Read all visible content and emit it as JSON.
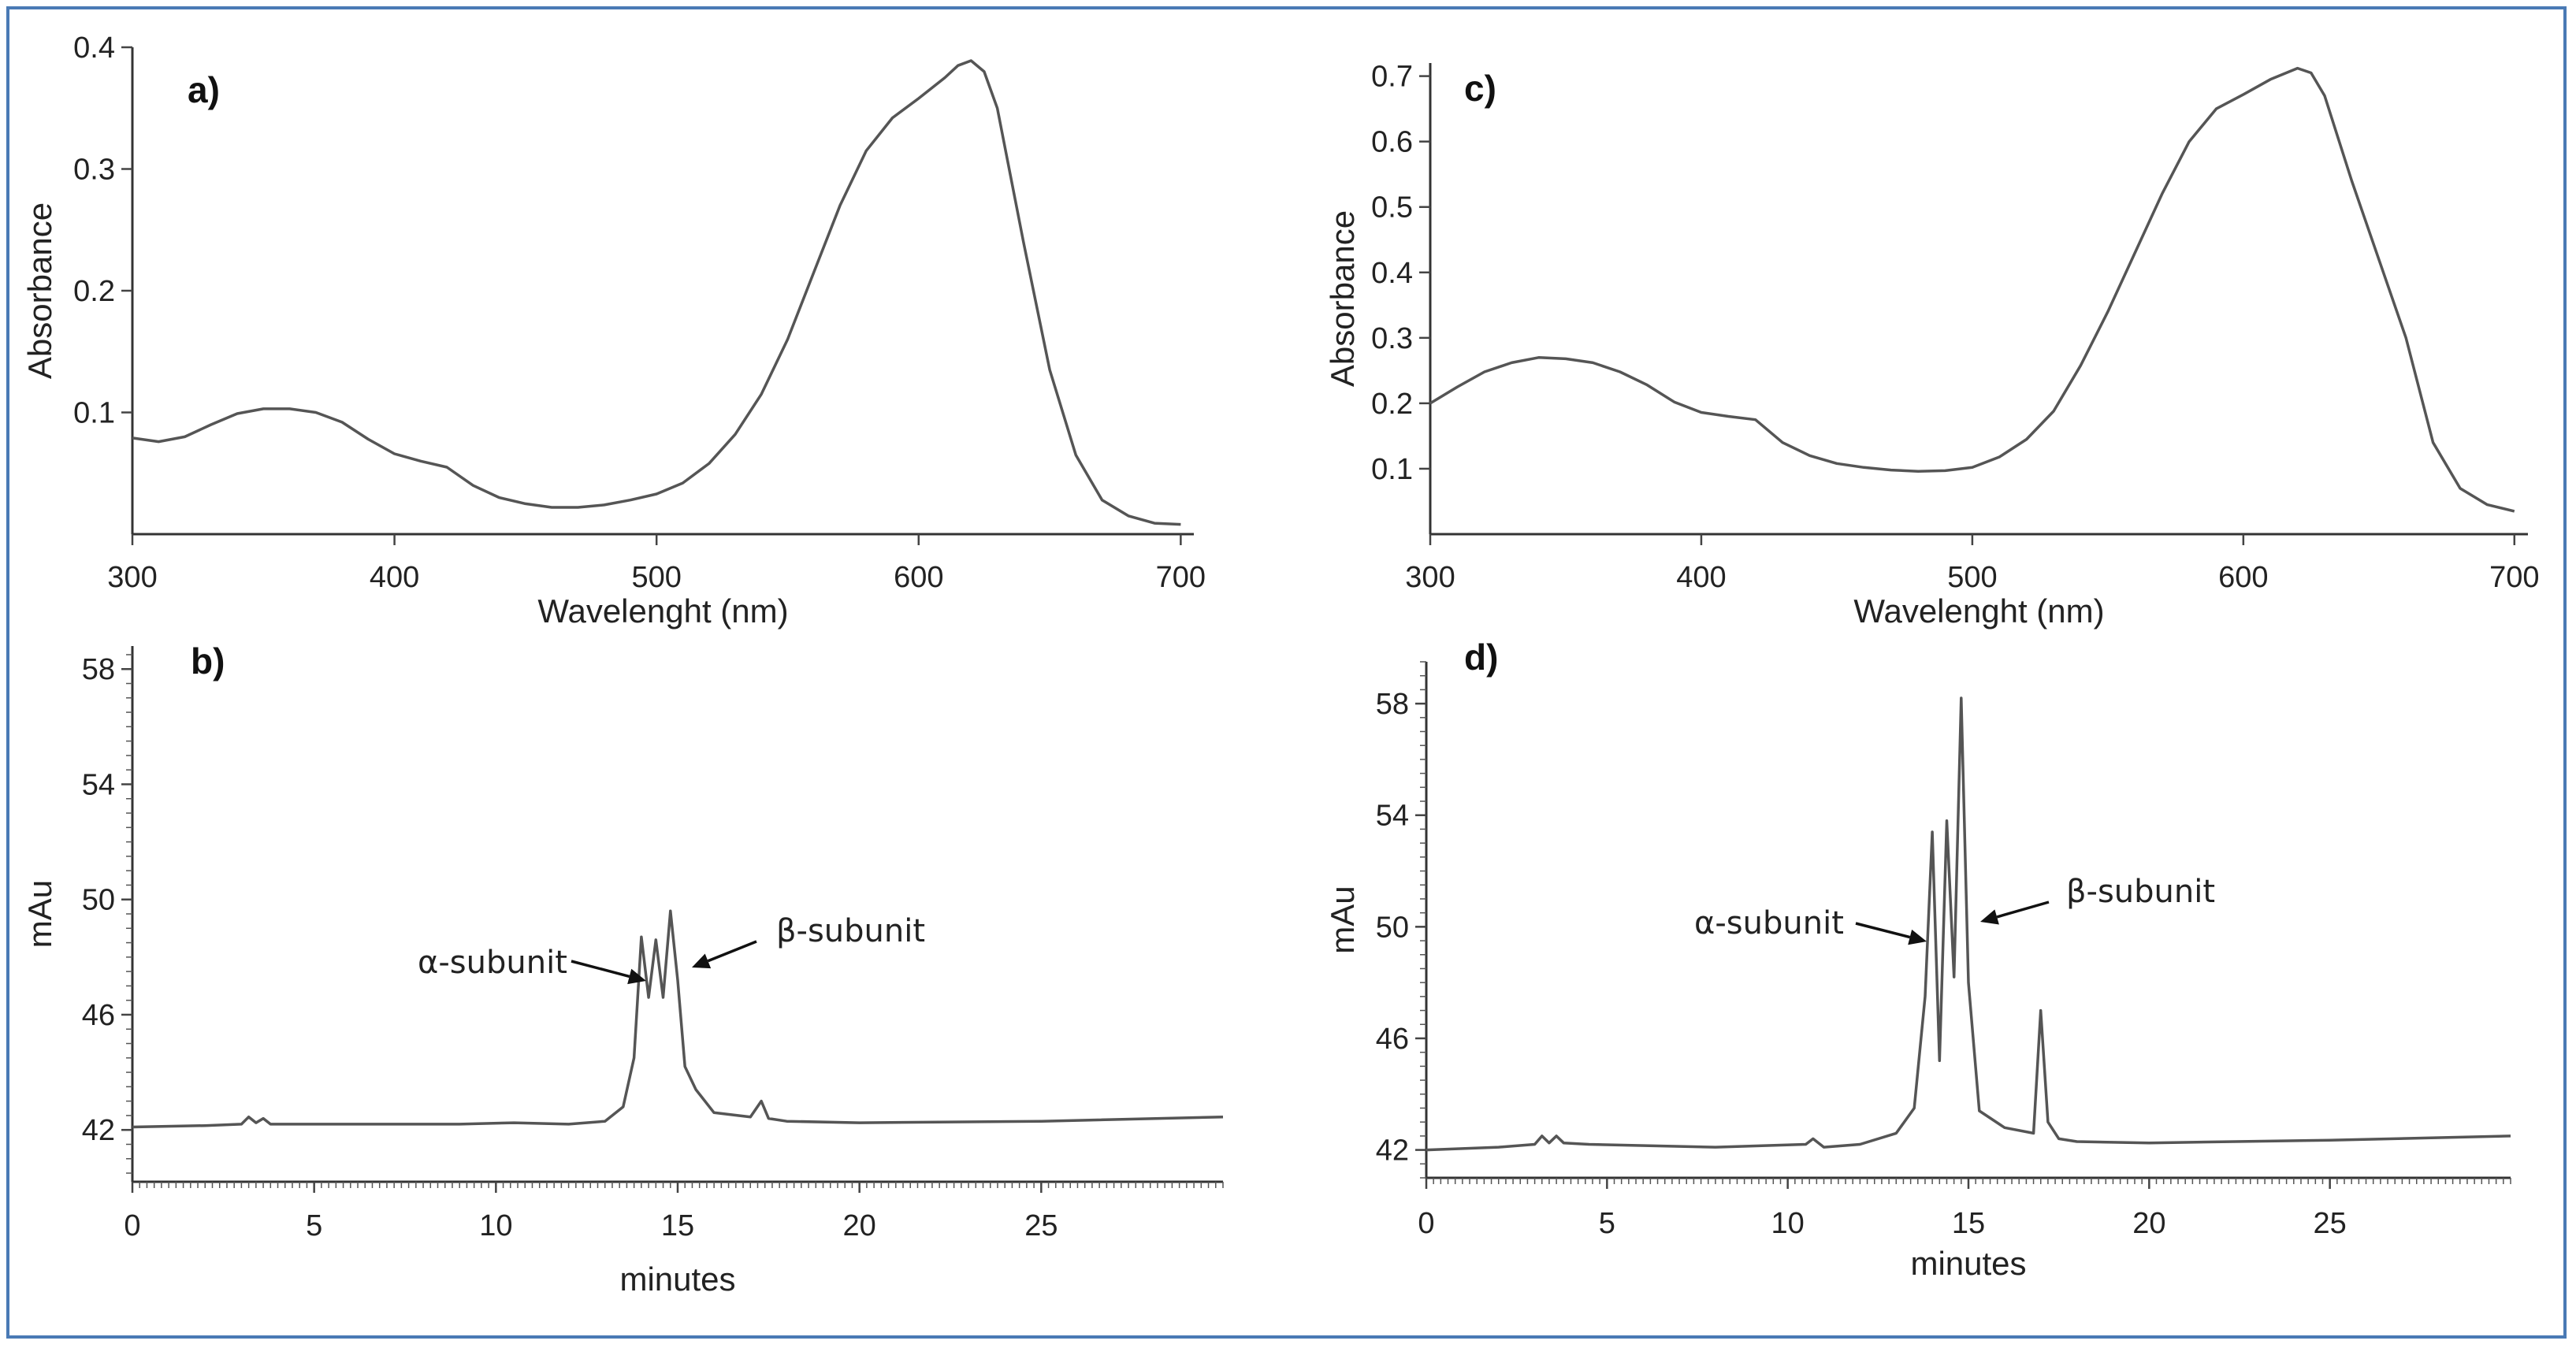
{
  "chart_data": [
    {
      "id": "a",
      "type": "line",
      "panel_label": "a)",
      "xlabel": "Wavelenght (nm)",
      "ylabel": "Absorbance",
      "xlim": [
        300,
        705
      ],
      "ylim": [
        0,
        0.4
      ],
      "xticks": [
        300,
        400,
        500,
        600,
        700
      ],
      "xtick_labels": [
        "300",
        "400",
        "500",
        "600",
        "700"
      ],
      "yticks": [
        0.1,
        0.2,
        0.3,
        0.4
      ],
      "ytick_labels": [
        "0.1",
        "0.2",
        "0.3",
        "0.4"
      ],
      "series": [
        {
          "name": "spectrum",
          "x": [
            300,
            310,
            320,
            330,
            340,
            350,
            360,
            370,
            380,
            390,
            400,
            410,
            420,
            430,
            440,
            450,
            460,
            470,
            480,
            490,
            500,
            510,
            520,
            530,
            540,
            550,
            560,
            570,
            580,
            590,
            600,
            610,
            615,
            620,
            625,
            630,
            640,
            650,
            660,
            670,
            680,
            690,
            700
          ],
          "y": [
            0.079,
            0.076,
            0.08,
            0.09,
            0.099,
            0.103,
            0.103,
            0.1,
            0.092,
            0.078,
            0.066,
            0.06,
            0.055,
            0.04,
            0.03,
            0.025,
            0.022,
            0.022,
            0.024,
            0.028,
            0.033,
            0.042,
            0.058,
            0.082,
            0.115,
            0.16,
            0.215,
            0.27,
            0.315,
            0.342,
            0.358,
            0.375,
            0.385,
            0.389,
            0.38,
            0.35,
            0.24,
            0.135,
            0.065,
            0.028,
            0.015,
            0.009,
            0.008
          ]
        }
      ],
      "annotations": []
    },
    {
      "id": "c",
      "type": "line",
      "panel_label": "c)",
      "xlabel": "Wavelenght (nm)",
      "ylabel": "Absorbance",
      "xlim": [
        300,
        705
      ],
      "ylim": [
        0,
        0.72
      ],
      "xticks": [
        300,
        400,
        500,
        600,
        700
      ],
      "xtick_labels": [
        "300",
        "400",
        "500",
        "600",
        "700"
      ],
      "yticks": [
        0.1,
        0.2,
        0.3,
        0.4,
        0.5,
        0.6,
        0.7
      ],
      "ytick_labels": [
        "0.1",
        "0.2",
        "0.3",
        "0.4",
        "0.5",
        "0.6",
        "0.7"
      ],
      "series": [
        {
          "name": "spectrum",
          "x": [
            300,
            310,
            320,
            330,
            340,
            350,
            360,
            370,
            380,
            390,
            400,
            410,
            420,
            430,
            440,
            450,
            460,
            470,
            480,
            490,
            500,
            510,
            520,
            530,
            540,
            550,
            560,
            570,
            580,
            590,
            600,
            610,
            620,
            625,
            630,
            640,
            650,
            660,
            670,
            680,
            690,
            700
          ],
          "y": [
            0.2,
            0.225,
            0.248,
            0.262,
            0.27,
            0.268,
            0.262,
            0.248,
            0.228,
            0.202,
            0.186,
            0.18,
            0.175,
            0.14,
            0.12,
            0.108,
            0.102,
            0.098,
            0.096,
            0.097,
            0.102,
            0.118,
            0.145,
            0.188,
            0.258,
            0.34,
            0.43,
            0.52,
            0.6,
            0.65,
            0.672,
            0.695,
            0.712,
            0.705,
            0.67,
            0.54,
            0.42,
            0.3,
            0.14,
            0.07,
            0.045,
            0.035
          ]
        }
      ],
      "annotations": []
    },
    {
      "id": "b",
      "type": "line",
      "panel_label": "b)",
      "xlabel": "minutes",
      "ylabel": "mAu",
      "xlim": [
        0,
        30
      ],
      "ylim": [
        40.2,
        58.8
      ],
      "xticks": [
        0,
        5,
        10,
        15,
        20,
        25
      ],
      "xtick_labels": [
        "0",
        "5",
        "10",
        "15",
        "20",
        "25"
      ],
      "yticks": [
        42,
        46,
        50,
        54,
        58
      ],
      "ytick_labels": [
        "42",
        "46",
        "50",
        "54",
        "58"
      ],
      "series": [
        {
          "name": "chromatogram",
          "x": [
            0,
            2,
            3,
            3.2,
            3.4,
            3.6,
            3.8,
            4.5,
            7,
            9,
            10.5,
            12,
            13,
            13.5,
            13.8,
            14,
            14.2,
            14.4,
            14.6,
            14.8,
            15.0,
            15.2,
            15.5,
            16,
            17,
            17.3,
            17.5,
            18,
            20,
            25,
            30
          ],
          "y": [
            42.1,
            42.15,
            42.2,
            42.45,
            42.25,
            42.4,
            42.2,
            42.2,
            42.2,
            42.2,
            42.25,
            42.2,
            42.3,
            42.8,
            44.5,
            48.7,
            46.6,
            48.6,
            46.6,
            49.6,
            47.2,
            44.2,
            43.4,
            42.6,
            42.45,
            43.0,
            42.4,
            42.3,
            42.25,
            42.3,
            42.45
          ]
        }
      ],
      "annotations": [
        {
          "text": "α-subunit",
          "peak_x": 14.0,
          "peak_y": 48.7
        },
        {
          "text": "β-subunit",
          "peak_x": 14.8,
          "peak_y": 49.6
        }
      ]
    },
    {
      "id": "d",
      "type": "line",
      "panel_label": "d)",
      "xlabel": "minutes",
      "ylabel": "mAu",
      "xlim": [
        0,
        30
      ],
      "ylim": [
        41.0,
        59.5
      ],
      "xticks": [
        0,
        5,
        10,
        15,
        20,
        25
      ],
      "xtick_labels": [
        "0",
        "5",
        "10",
        "15",
        "20",
        "25"
      ],
      "yticks": [
        42,
        46,
        50,
        54,
        58
      ],
      "ytick_labels": [
        "42",
        "46",
        "50",
        "54",
        "58"
      ],
      "series": [
        {
          "name": "chromatogram",
          "x": [
            0,
            2,
            3,
            3.2,
            3.4,
            3.6,
            3.8,
            4.5,
            8,
            10.5,
            10.7,
            11,
            12,
            13,
            13.5,
            13.8,
            14.0,
            14.2,
            14.4,
            14.6,
            14.8,
            15.0,
            15.3,
            16,
            16.8,
            17.0,
            17.2,
            17.5,
            18,
            20,
            25,
            30
          ],
          "y": [
            42.0,
            42.1,
            42.2,
            42.5,
            42.25,
            42.5,
            42.25,
            42.2,
            42.1,
            42.2,
            42.4,
            42.1,
            42.2,
            42.6,
            43.5,
            47.5,
            53.4,
            45.2,
            53.8,
            48.2,
            58.2,
            48.0,
            43.4,
            42.8,
            42.6,
            47.0,
            43.0,
            42.4,
            42.3,
            42.25,
            42.35,
            42.5
          ]
        }
      ],
      "annotations": [
        {
          "text": "α-subunit",
          "peak_x": 14.0,
          "peak_y": 53.4
        },
        {
          "text": "β-subunit",
          "peak_x": 14.8,
          "peak_y": 58.2
        }
      ]
    }
  ]
}
